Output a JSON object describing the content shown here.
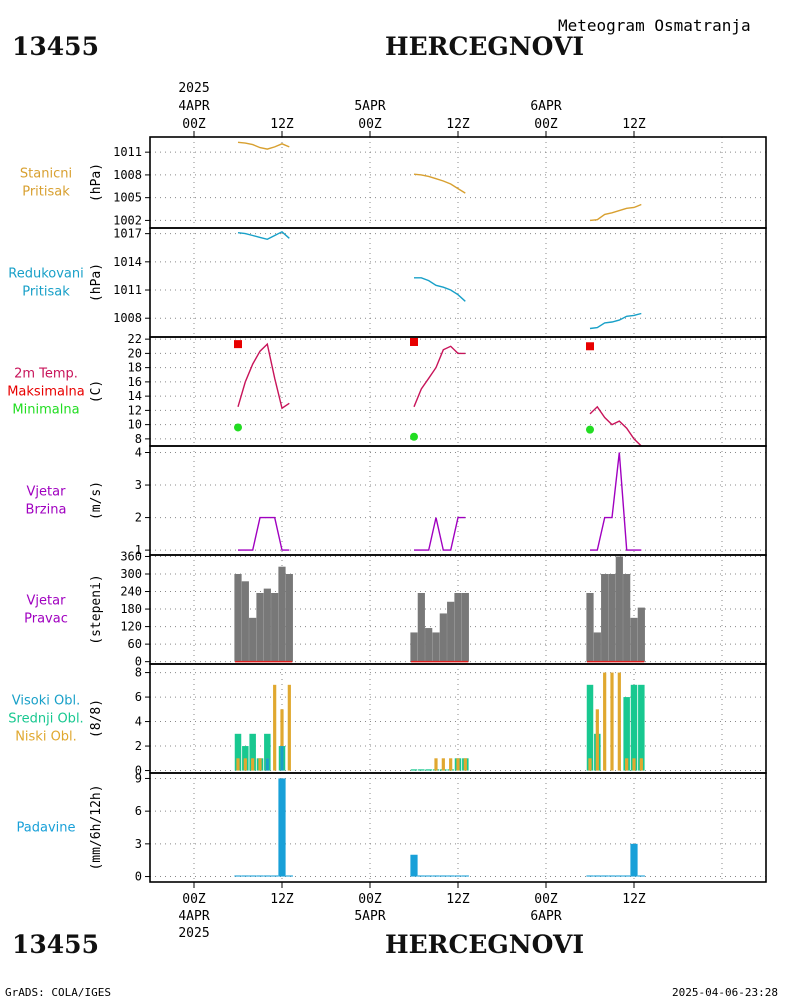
{
  "header": {
    "station_id": "13455",
    "station_name": "HERCEGNOVI",
    "subtitle": "Meteogram Osmatranja"
  },
  "footer": {
    "credit": "GrADS: COLA/IGES",
    "timestamp": "2025-04-06-23:28"
  },
  "colors": {
    "pressure": "#d8a030",
    "slp": "#18a0c8",
    "temp": "#c8145a",
    "tmax": "#e80000",
    "tmin": "#22dd22",
    "wind": "#a000c0",
    "winddir": "#787878",
    "cloud_high": "#18a0c8",
    "cloud_mid": "#18c890",
    "cloud_low": "#e0a830",
    "precip": "#18a0d8",
    "red_base": "#e02020"
  },
  "time_axis": {
    "top": {
      "year": "2025",
      "ticks": [
        {
          "day": "4APR",
          "hour": "00Z"
        },
        {
          "day": "",
          "hour": "12Z"
        },
        {
          "day": "5APR",
          "hour": "00Z"
        },
        {
          "day": "",
          "hour": "12Z"
        },
        {
          "day": "6APR",
          "hour": "00Z"
        },
        {
          "day": "",
          "hour": "12Z"
        }
      ]
    },
    "bottom": {
      "year": "2025",
      "ticks": [
        {
          "day": "4APR",
          "hour": "00Z"
        },
        {
          "day": "",
          "hour": "12Z"
        },
        {
          "day": "5APR",
          "hour": "00Z"
        },
        {
          "day": "",
          "hour": "12Z"
        },
        {
          "day": "6APR",
          "hour": "00Z"
        },
        {
          "day": "",
          "hour": "12Z"
        }
      ]
    }
  },
  "chart_data": [
    {
      "type": "line",
      "title": "Stanicni Pritisak",
      "label_lines": [
        "Stanicni",
        "Pritisak"
      ],
      "ylabel": "(hPa)",
      "ylim": [
        1001,
        1013
      ],
      "yticks": [
        1002,
        1005,
        1008,
        1011
      ],
      "x_unit": "hours since 2025-04-04 00Z",
      "series": [
        {
          "name": "day1",
          "x": [
            6,
            7,
            8,
            9,
            10,
            11,
            12,
            13
          ],
          "values": [
            1012.3,
            1012.2,
            1012.0,
            1011.6,
            1011.4,
            1011.7,
            1012.1,
            1011.7
          ]
        },
        {
          "name": "day2",
          "x": [
            30,
            31,
            32,
            33,
            34,
            35,
            36,
            37
          ],
          "values": [
            1008.1,
            1008.0,
            1007.8,
            1007.5,
            1007.2,
            1006.8,
            1006.2,
            1005.6
          ]
        },
        {
          "name": "day3",
          "x": [
            54,
            55,
            56,
            57,
            58,
            59,
            60,
            61
          ],
          "values": [
            1002.0,
            1002.1,
            1002.8,
            1003.0,
            1003.3,
            1003.6,
            1003.7,
            1004.1
          ]
        }
      ]
    },
    {
      "type": "line",
      "title": "Redukovani Pritisak",
      "label_lines": [
        "Redukovani",
        "Pritisak"
      ],
      "ylabel": "(hPa)",
      "ylim": [
        1006,
        1017.6
      ],
      "yticks": [
        1008,
        1011,
        1014,
        1017
      ],
      "x_unit": "hours since 2025-04-04 00Z",
      "series": [
        {
          "name": "day1",
          "x": [
            6,
            7,
            8,
            9,
            10,
            11,
            12,
            13
          ],
          "values": [
            1017.1,
            1017.0,
            1016.8,
            1016.6,
            1016.4,
            1016.8,
            1017.2,
            1016.5
          ]
        },
        {
          "name": "day2",
          "x": [
            30,
            31,
            32,
            33,
            34,
            35,
            36,
            37
          ],
          "values": [
            1012.3,
            1012.3,
            1012.0,
            1011.5,
            1011.3,
            1011.0,
            1010.5,
            1009.8
          ]
        },
        {
          "name": "day3",
          "x": [
            54,
            55,
            56,
            57,
            58,
            59,
            60,
            61
          ],
          "values": [
            1006.9,
            1007.0,
            1007.5,
            1007.6,
            1007.8,
            1008.2,
            1008.3,
            1008.5
          ]
        }
      ]
    },
    {
      "type": "line",
      "title": "2m Temp. Maksimalna Minimalna",
      "label_lines": [
        "2m Temp.",
        "Maksimalna",
        "Minimalna"
      ],
      "ylabel": "(C)",
      "ylim": [
        7,
        22.3
      ],
      "yticks": [
        8,
        10,
        12,
        14,
        16,
        18,
        20,
        22
      ],
      "x_unit": "hours since 2025-04-04 00Z",
      "series": [
        {
          "name": "temp_day1",
          "x": [
            6,
            7,
            8,
            9,
            10,
            11,
            12,
            13
          ],
          "values": [
            12.5,
            16.0,
            18.5,
            20.3,
            21.3,
            16.5,
            12.3,
            13.0
          ]
        },
        {
          "name": "temp_day2",
          "x": [
            30,
            31,
            32,
            33,
            34,
            35,
            36,
            37
          ],
          "values": [
            12.5,
            15.0,
            16.5,
            18.0,
            20.5,
            21.0,
            20.0,
            20.0
          ]
        },
        {
          "name": "temp_day3",
          "x": [
            54,
            55,
            56,
            57,
            58,
            59,
            60,
            61
          ],
          "values": [
            11.5,
            12.5,
            11.0,
            10.0,
            10.5,
            9.5,
            8.0,
            7.0
          ]
        }
      ],
      "max_points": {
        "x": [
          6,
          30,
          54
        ],
        "values": [
          21.3,
          21.6,
          21.0
        ]
      },
      "min_points": {
        "x": [
          6,
          30,
          54
        ],
        "values": [
          9.6,
          8.3,
          9.3
        ]
      }
    },
    {
      "type": "line",
      "title": "Vjetar Brzina",
      "label_lines": [
        "Vjetar",
        "Brzina"
      ],
      "ylabel": "(m/s)",
      "ylim": [
        0.85,
        4.2
      ],
      "yticks": [
        1,
        2,
        3,
        4
      ],
      "x_unit": "hours since 2025-04-04 00Z",
      "series": [
        {
          "name": "day1",
          "x": [
            6,
            7,
            8,
            9,
            10,
            11,
            12,
            13
          ],
          "values": [
            1,
            1,
            1,
            2,
            2,
            2,
            1,
            1
          ]
        },
        {
          "name": "day2",
          "x": [
            30,
            31,
            32,
            33,
            34,
            35,
            36,
            37
          ],
          "values": [
            1,
            1,
            1,
            2,
            1,
            1,
            2,
            2
          ]
        },
        {
          "name": "day3",
          "x": [
            54,
            55,
            56,
            57,
            58,
            59,
            60,
            61
          ],
          "values": [
            1,
            1,
            2,
            2,
            4,
            1,
            1,
            1
          ]
        }
      ]
    },
    {
      "type": "bar",
      "title": "Vjetar Pravac",
      "label_lines": [
        "Vjetar",
        "Pravac"
      ],
      "ylabel": "(stepeni)",
      "ylim": [
        -8,
        365
      ],
      "yticks": [
        0,
        60,
        120,
        180,
        240,
        300,
        360
      ],
      "x_unit": "hours since 2025-04-04 00Z",
      "series": [
        {
          "name": "direction",
          "x": [
            6,
            7,
            8,
            9,
            10,
            11,
            12,
            13,
            30,
            31,
            32,
            33,
            34,
            35,
            36,
            37,
            54,
            55,
            56,
            57,
            58,
            59,
            60,
            61
          ],
          "values": [
            300,
            275,
            150,
            235,
            250,
            235,
            325,
            300,
            100,
            235,
            115,
            100,
            165,
            205,
            235,
            235,
            235,
            100,
            300,
            300,
            360,
            300,
            150,
            185
          ]
        }
      ]
    },
    {
      "type": "bar",
      "title": "Visoki Obl. Srednji Obl. Niski Obl.",
      "label_lines": [
        "Visoki Obl.",
        "Srednji Obl.",
        "Niski Obl."
      ],
      "ylabel": "(8/8)",
      "ylim": [
        -0.2,
        8.7
      ],
      "yticks": [
        0,
        2,
        4,
        6,
        8
      ],
      "x_unit": "hours since 2025-04-04 00Z",
      "x": [
        6,
        7,
        8,
        9,
        10,
        11,
        12,
        13,
        30,
        31,
        32,
        33,
        34,
        35,
        36,
        37,
        54,
        55,
        56,
        57,
        58,
        59,
        60,
        61
      ],
      "series": [
        {
          "name": "Srednji Obl.",
          "values": [
            3,
            2,
            3,
            1,
            3,
            0,
            2,
            0,
            0.1,
            0.1,
            0.1,
            0.1,
            0.1,
            0.1,
            1,
            1,
            7,
            3,
            0,
            0,
            0,
            6,
            7,
            7
          ]
        },
        {
          "name": "Niski Obl.",
          "values": [
            1,
            1,
            1,
            1,
            1,
            7,
            5,
            7,
            0,
            0,
            0,
            1,
            1,
            1,
            1,
            1,
            1,
            5,
            8,
            8,
            8,
            1,
            1,
            1
          ]
        },
        {
          "name": "Visoki Obl.",
          "values": [
            0,
            0,
            0,
            0,
            1,
            0,
            2,
            0,
            0,
            0,
            0,
            0,
            0,
            0,
            0,
            0,
            0,
            0,
            0,
            0,
            0,
            0,
            0,
            0
          ]
        }
      ]
    },
    {
      "type": "bar",
      "title": "Padavine",
      "label_lines": [
        "Padavine"
      ],
      "ylabel": "(mm/6h/12h)",
      "ylim": [
        -0.5,
        9.5
      ],
      "yticks": [
        0,
        3,
        6,
        9
      ],
      "x_unit": "hours since 2025-04-04 00Z",
      "series": [
        {
          "name": "precip",
          "x": [
            6,
            7,
            8,
            9,
            10,
            11,
            12,
            13,
            30,
            31,
            32,
            33,
            34,
            35,
            36,
            37,
            54,
            55,
            56,
            57,
            58,
            59,
            60,
            61
          ],
          "values": [
            0.1,
            0.1,
            0.1,
            0.1,
            0.1,
            0.1,
            9.0,
            0.1,
            2.0,
            0.1,
            0.1,
            0.1,
            0.1,
            0.1,
            0.1,
            0.1,
            0.1,
            0.1,
            0.1,
            0.1,
            0.1,
            0.1,
            3.0,
            0.1
          ]
        }
      ]
    }
  ]
}
